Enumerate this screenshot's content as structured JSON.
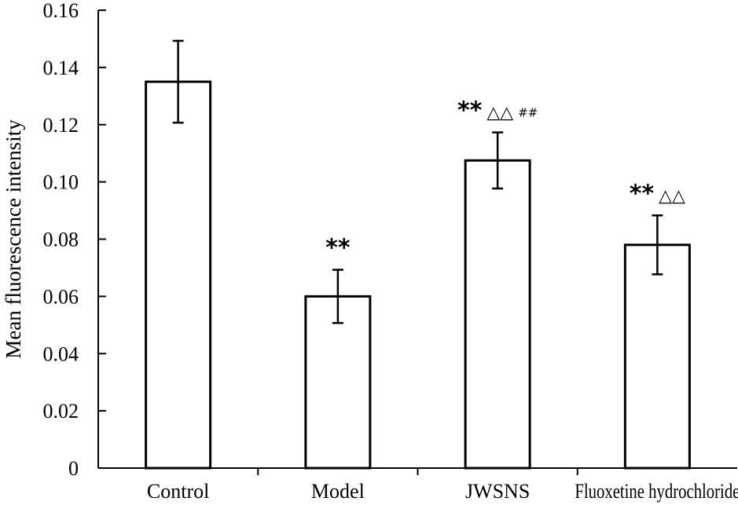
{
  "chart_data": {
    "type": "bar",
    "title": "",
    "xlabel": "",
    "ylabel": "Mean fluorescence intensity",
    "ylim": [
      0,
      0.16
    ],
    "yticks": [
      "0",
      "0.02",
      "0.04",
      "0.06",
      "0.08",
      "0.10",
      "0.12",
      "0.14",
      "0.16"
    ],
    "categories": [
      "Control",
      "Model",
      "JWSNS",
      "Fluoxetine hydrochloride"
    ],
    "values": [
      0.135,
      0.06,
      0.1075,
      0.078
    ],
    "errors": [
      0.0143,
      0.0093,
      0.0098,
      0.0103
    ],
    "annotations": [
      {
        "stars": "",
        "triangles": "",
        "hashes": ""
      },
      {
        "stars": "**",
        "triangles": "",
        "hashes": ""
      },
      {
        "stars": "**",
        "triangles": "△△",
        "hashes": "##"
      },
      {
        "stars": "**",
        "triangles": "△△",
        "hashes": ""
      }
    ],
    "grid": false,
    "bar_fill": "#ffffff",
    "bar_stroke": "#000000"
  }
}
